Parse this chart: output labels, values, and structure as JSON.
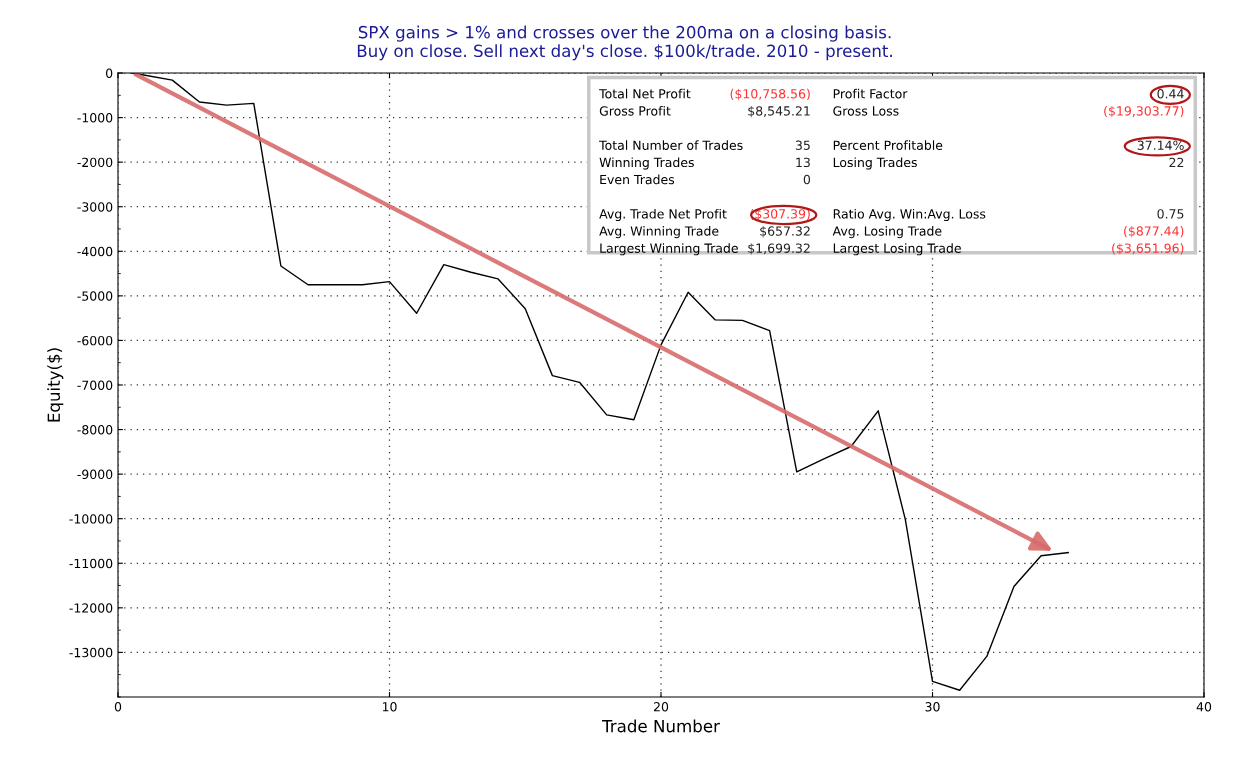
{
  "chart_data": {
    "type": "line",
    "title": "SPX gains > 1% and crosses over the 200ma on a closing basis.\nBuy on close. Sell next day's close. $100k/trade. 2010 - present.",
    "xlabel": "Trade Number",
    "ylabel": "Equity($)",
    "x": [
      0.5,
      1,
      2,
      3,
      4,
      5,
      6,
      7,
      8,
      9,
      10,
      11,
      12,
      13,
      14,
      15,
      16,
      17,
      18,
      19,
      20,
      21,
      22,
      23,
      24,
      25,
      26,
      27,
      28,
      29,
      30,
      31,
      32,
      33,
      34,
      35
    ],
    "series": [
      {
        "color": "#000000",
        "values": [
          0,
          -50,
          -160,
          -650,
          -720,
          -680,
          -4330,
          -4750,
          -4750,
          -4750,
          -4680,
          -5390,
          -4300,
          -4470,
          -4620,
          -5290,
          -6790,
          -6940,
          -7670,
          -7780,
          -6100,
          -4920,
          -5540,
          -5550,
          -5780,
          -8950,
          -8660,
          -8380,
          -7580,
          -10020,
          -13650,
          -13850,
          -13090,
          -11520,
          -10830,
          -10760
        ]
      }
    ],
    "xlim": [
      0,
      40
    ],
    "xticks": [
      0,
      10,
      20,
      30,
      40
    ],
    "ylim": [
      -14000,
      0
    ],
    "yticks": [
      0,
      -1000,
      -2000,
      -3000,
      -4000,
      -5000,
      -6000,
      -7000,
      -8000,
      -9000,
      -10000,
      -11000,
      -12000,
      -13000
    ],
    "grid": true,
    "line_style": "solid",
    "marker": "none",
    "annotations": [
      "Total Net Profit",
      "($10,758.56)",
      "Gross Profit",
      "$8,545.21",
      "Total Number of Trades",
      "35",
      "Winning Trades",
      "13",
      "Even Trades",
      "0",
      "Avg. Trade Net Profit",
      "($307.39)",
      "Avg. Winning Trade",
      "$657.32",
      "Largest Winning Trade",
      "$1,699.32",
      "Profit Factor",
      "0.44",
      "Gross Loss",
      "($19,303.77)",
      "Percent Profitable",
      "37.14%",
      "Losing Trades",
      "22",
      "Ratio Avg. Win:Avg. Loss",
      "0.75",
      "Avg. Losing Trade",
      "($877.44)",
      "Largest Losing Trade",
      "($3,651.96)"
    ]
  }
}
